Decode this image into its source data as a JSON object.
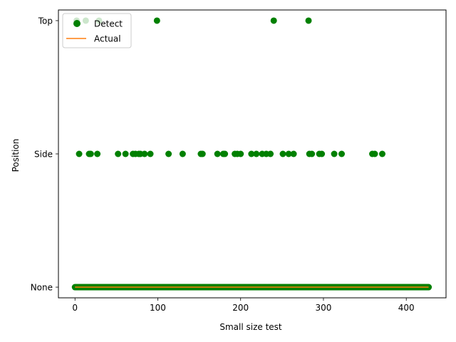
{
  "chart_data": {
    "type": "scatter",
    "title": "",
    "xlabel": "Small size  test",
    "ylabel": "Position",
    "categories_y": [
      "None",
      "Side",
      "Top"
    ],
    "xlim": [
      -20,
      448
    ],
    "ylim": [
      -0.08,
      2.08
    ],
    "xticks": [
      0,
      100,
      200,
      300,
      400
    ],
    "grid": false,
    "legend": {
      "placement": "top-left",
      "entries": [
        {
          "label": "Detect",
          "marker": "circle",
          "color": "#008000"
        },
        {
          "label": "Actual",
          "marker": "line",
          "color": "#ff7f0e"
        }
      ]
    },
    "series": [
      {
        "name": "Detect",
        "color": "#008000",
        "none_x_range": [
          0,
          427
        ],
        "side_x": [
          5,
          17,
          19,
          27,
          52,
          61,
          70,
          73,
          77,
          79,
          84,
          91,
          113,
          130,
          152,
          154,
          172,
          179,
          181,
          193,
          196,
          200,
          213,
          219,
          226,
          231,
          236,
          251,
          258,
          264,
          283,
          286,
          295,
          298,
          313,
          322,
          359,
          362,
          371
        ],
        "top_x": [
          2,
          13,
          29,
          99,
          240,
          282
        ]
      },
      {
        "name": "Actual",
        "color": "#ff7f0e",
        "line_value": "None",
        "x_range": [
          0,
          427
        ]
      }
    ]
  }
}
